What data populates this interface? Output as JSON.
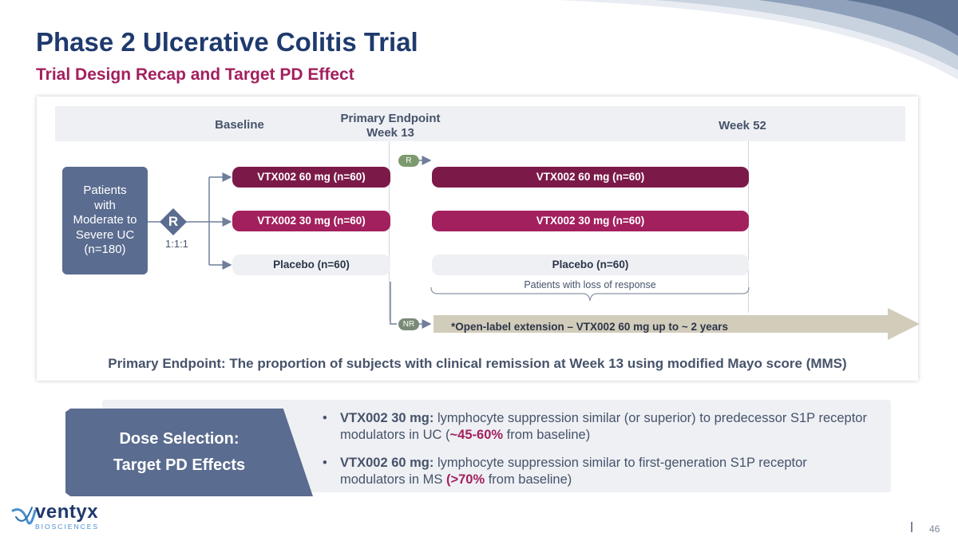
{
  "title": "Phase 2 Ulcerative Colitis Trial",
  "subtitle": "Trial Design Recap and Target PD Effect",
  "headers": {
    "baseline": "Baseline",
    "primary_endpoint_line1": "Primary Endpoint",
    "primary_endpoint_line2": "Week 13",
    "week52": "Week 52"
  },
  "patients_box": {
    "line1": "Patients",
    "line2": "with",
    "line3": "Moderate to",
    "line4": "Severe UC",
    "line5": "(n=180)"
  },
  "randomization": {
    "symbol": "R",
    "ratio": "1:1:1"
  },
  "arms_induction": [
    {
      "label": "VTX002 60 mg (n=60)"
    },
    {
      "label": "VTX002 30 mg (n=60)"
    },
    {
      "label": "Placebo (n=60)"
    }
  ],
  "arms_maintenance": [
    {
      "label": "VTX002 60 mg (n=60)"
    },
    {
      "label": "VTX002 30 mg (n=60)"
    },
    {
      "label": "Placebo (n=60)"
    }
  ],
  "tags": {
    "responder": "R",
    "non_responder": "NR"
  },
  "loss_of_response": "Patients with loss of response",
  "open_label": "*Open-label extension – VTX002 60 mg up to ~ 2 years",
  "primary_endpoint": "Primary Endpoint: The proportion of subjects with clinical remission at Week 13 using modified Mayo score (MMS)",
  "dose_selection": {
    "line1": "Dose Selection:",
    "line2": "Target PD Effects",
    "bullets": [
      {
        "bold": "VTX002 30 mg:",
        "text1": " lymphocyte suppression similar (or superior) to predecessor S1P receptor modulators in UC (",
        "highlight": "~45-60%",
        "text2": " from baseline)"
      },
      {
        "bold": "VTX002 60 mg:",
        "text1": " lymphocyte suppression similar to first-generation S1P receptor modulators in MS ",
        "highlight": "(>70%",
        "text2": " from baseline)"
      }
    ]
  },
  "logo": {
    "name": "ventyx",
    "tagline": "BIOSCIENCES"
  },
  "page_number": "46",
  "colors": {
    "navy": "#1f3a6d",
    "magenta": "#a3205e",
    "dark_magenta": "#7b1a48",
    "slate": "#5a6c8f",
    "light_gray": "#eef0f4",
    "extension_arrow": "#d2ccbb"
  }
}
